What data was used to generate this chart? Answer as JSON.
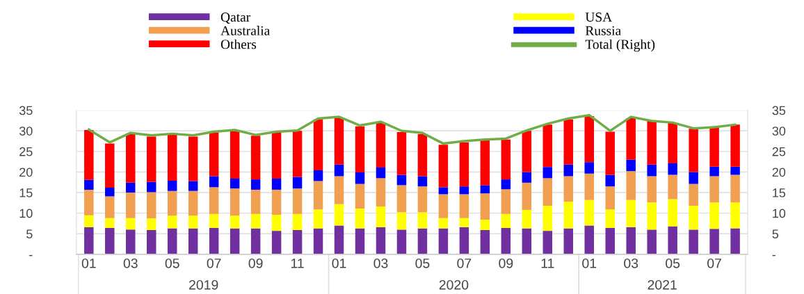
{
  "chart_data": {
    "type": "bar",
    "stacked": true,
    "categories": [
      "01",
      null,
      "03",
      null,
      "05",
      null,
      "07",
      null,
      "09",
      null,
      "11",
      null,
      "01",
      null,
      "03",
      null,
      "05",
      null,
      "07",
      null,
      "09",
      null,
      "11",
      null,
      "01",
      null,
      "03",
      null,
      "05",
      null,
      "07",
      null
    ],
    "annotations": [
      "2019",
      "2020",
      "2021"
    ],
    "series": [
      {
        "name": "Qatar",
        "color": "#7030a0",
        "values": [
          6.6,
          6.4,
          6.0,
          5.9,
          6.3,
          6.3,
          6.4,
          6.3,
          6.3,
          5.7,
          5.9,
          6.3,
          7.0,
          6.3,
          6.6,
          6.0,
          6.3,
          6.3,
          6.6,
          5.9,
          6.4,
          6.3,
          5.7,
          6.3,
          7.0,
          6.4,
          6.6,
          6.0,
          6.8,
          6.0,
          6.2,
          6.3
        ]
      },
      {
        "name": "USA",
        "color": "#ffff00",
        "values": [
          2.9,
          2.4,
          2.8,
          2.8,
          3.1,
          3.1,
          3.4,
          3.1,
          3.5,
          3.9,
          3.9,
          4.6,
          5.2,
          4.8,
          5.0,
          4.2,
          3.9,
          2.5,
          2.2,
          2.5,
          3.4,
          4.5,
          6.1,
          6.5,
          6.2,
          4.5,
          6.6,
          6.6,
          6.6,
          5.8,
          6.4,
          6.3
        ]
      },
      {
        "name": "Australia",
        "color": "#f0a050",
        "values": [
          6.2,
          5.3,
          6.2,
          6.4,
          6.0,
          6.0,
          6.5,
          6.6,
          5.9,
          6.1,
          6.2,
          6.9,
          6.8,
          6.0,
          6.9,
          6.6,
          6.3,
          5.8,
          5.8,
          6.4,
          6.0,
          6.6,
          6.7,
          6.2,
          6.4,
          5.6,
          7.0,
          6.4,
          5.9,
          5.3,
          6.4,
          6.7
        ]
      },
      {
        "name": "Russia",
        "color": "#0000ff",
        "values": [
          2.4,
          2.1,
          2.4,
          2.5,
          2.5,
          2.4,
          2.7,
          2.4,
          2.5,
          2.7,
          2.8,
          2.6,
          2.8,
          2.8,
          2.6,
          2.5,
          2.5,
          1.7,
          1.9,
          2.0,
          2.4,
          2.6,
          2.7,
          2.8,
          2.8,
          2.8,
          2.8,
          2.8,
          2.8,
          2.9,
          2.3,
          2.0
        ]
      },
      {
        "name": "Others",
        "color": "#ff0000",
        "values": [
          12.1,
          10.7,
          11.9,
          11.0,
          11.2,
          10.8,
          10.6,
          11.6,
          10.6,
          11.3,
          11.2,
          12.4,
          11.3,
          11.2,
          10.8,
          10.4,
          10.2,
          10.3,
          10.7,
          10.9,
          9.7,
          10.0,
          10.3,
          11.0,
          11.2,
          10.5,
          10.1,
          10.7,
          9.8,
          10.5,
          9.5,
          10.2
        ]
      },
      {
        "name": "Total (Right)",
        "type": "line",
        "axis": "y2",
        "color": "#70ad47",
        "values": [
          30.3,
          27.2,
          29.5,
          28.9,
          29.3,
          28.9,
          29.8,
          30.2,
          29.0,
          29.8,
          30.1,
          33.0,
          33.4,
          31.3,
          32.2,
          30.0,
          29.5,
          26.9,
          27.5,
          27.9,
          28.1,
          30.1,
          31.7,
          33.0,
          33.8,
          30.0,
          33.4,
          32.4,
          32.0,
          30.6,
          30.9,
          31.5
        ]
      }
    ],
    "ylim": [
      0,
      35
    ],
    "yticks": [
      {
        "value": 0,
        "label": "-"
      },
      5,
      10,
      15,
      20,
      25,
      30,
      35
    ],
    "y2lim": [
      0,
      35
    ],
    "y2ticks": [
      {
        "value": 0,
        "label": "-"
      },
      5,
      10,
      15,
      20,
      25,
      30,
      35
    ],
    "grid": "y",
    "legend": "top",
    "marker": "none",
    "line_style": "solid"
  }
}
